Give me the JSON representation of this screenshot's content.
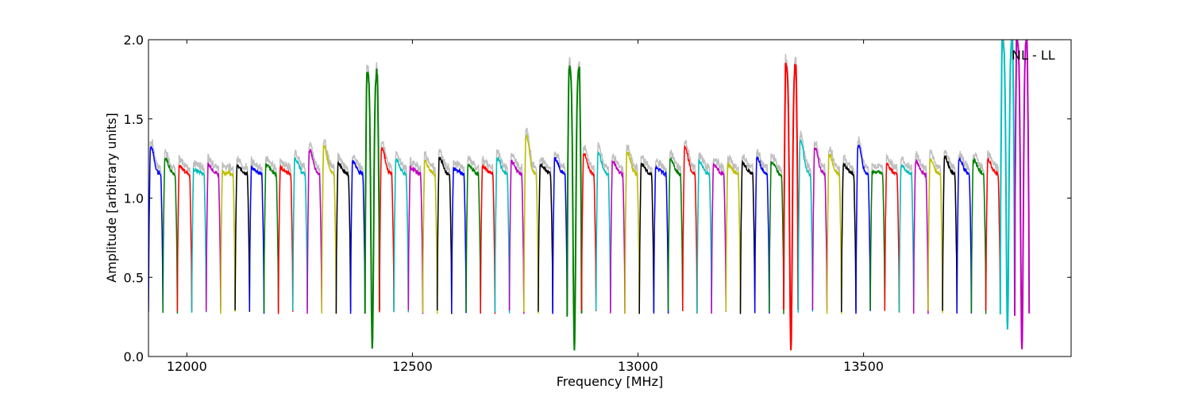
{
  "chart_data": {
    "type": "line",
    "title": "",
    "xlabel": "Frequency [MHz]",
    "ylabel": "Amplitude [arbitrary units]",
    "xlim": [
      11915,
      13960
    ],
    "ylim": [
      0.0,
      2.0
    ],
    "xticks": [
      12000,
      12500,
      13000,
      13500
    ],
    "yticks": [
      0.0,
      0.5,
      1.0,
      1.5,
      2.0
    ],
    "xtick_labels": [
      "12000",
      "12500",
      "13000",
      "13500"
    ],
    "ytick_labels": [
      "0.0",
      "0.5",
      "1.0",
      "1.5",
      "2.0"
    ],
    "grid": false,
    "annotation": "NL - LL",
    "background_trace_color": "#bfbfbf",
    "color_cycle": [
      "#0000ff",
      "#008000",
      "#ff0000",
      "#00bfbf",
      "#bf00bf",
      "#bfbf00",
      "#000000"
    ],
    "subband": {
      "width_mhz": 32,
      "baseline_level": 1.2,
      "edge_minimum": 0.28
    },
    "series": [
      {
        "start": 11915,
        "peak": 1.33
      },
      {
        "start": 11947,
        "peak": 1.26
      },
      {
        "start": 11979,
        "peak": 1.21
      },
      {
        "start": 12011,
        "peak": 1.19
      },
      {
        "start": 12043,
        "peak": 1.22
      },
      {
        "start": 12075,
        "peak": 1.17
      },
      {
        "start": 12107,
        "peak": 1.21
      },
      {
        "start": 12139,
        "peak": 1.2
      },
      {
        "start": 12171,
        "peak": 1.22
      },
      {
        "start": 12203,
        "peak": 1.2
      },
      {
        "start": 12235,
        "peak": 1.26
      },
      {
        "start": 12267,
        "peak": 1.31
      },
      {
        "start": 12299,
        "peak": 1.33
      },
      {
        "start": 12331,
        "peak": 1.23
      },
      {
        "start": 12363,
        "peak": 1.24
      },
      {
        "start": 12395,
        "peak": 1.8,
        "dip": 0.05
      },
      {
        "start": 12427,
        "peak": 1.33
      },
      {
        "start": 12459,
        "peak": 1.25
      },
      {
        "start": 12491,
        "peak": 1.2
      },
      {
        "start": 12523,
        "peak": 1.24
      },
      {
        "start": 12555,
        "peak": 1.26
      },
      {
        "start": 12587,
        "peak": 1.2
      },
      {
        "start": 12619,
        "peak": 1.22
      },
      {
        "start": 12651,
        "peak": 1.21
      },
      {
        "start": 12683,
        "peak": 1.26
      },
      {
        "start": 12715,
        "peak": 1.24
      },
      {
        "start": 12747,
        "peak": 1.4
      },
      {
        "start": 12779,
        "peak": 1.22
      },
      {
        "start": 12811,
        "peak": 1.26
      },
      {
        "start": 12843,
        "peak": 1.82,
        "dip": 0.05
      },
      {
        "start": 12875,
        "peak": 1.29
      },
      {
        "start": 12907,
        "peak": 1.29
      },
      {
        "start": 12939,
        "peak": 1.24
      },
      {
        "start": 12971,
        "peak": 1.3
      },
      {
        "start": 13003,
        "peak": 1.22
      },
      {
        "start": 13035,
        "peak": 1.2
      },
      {
        "start": 13067,
        "peak": 1.26
      },
      {
        "start": 13099,
        "peak": 1.33
      },
      {
        "start": 13131,
        "peak": 1.24
      },
      {
        "start": 13163,
        "peak": 1.22
      },
      {
        "start": 13195,
        "peak": 1.22
      },
      {
        "start": 13227,
        "peak": 1.23
      },
      {
        "start": 13259,
        "peak": 1.26
      },
      {
        "start": 13291,
        "peak": 1.24
      },
      {
        "start": 13323,
        "peak": 1.84,
        "dip": 0.04
      },
      {
        "start": 13355,
        "peak": 1.37
      },
      {
        "start": 13387,
        "peak": 1.33
      },
      {
        "start": 13419,
        "peak": 1.28
      },
      {
        "start": 13451,
        "peak": 1.22
      },
      {
        "start": 13483,
        "peak": 1.34
      },
      {
        "start": 13515,
        "peak": 1.18
      },
      {
        "start": 13547,
        "peak": 1.22
      },
      {
        "start": 13579,
        "peak": 1.21
      },
      {
        "start": 13611,
        "peak": 1.24
      },
      {
        "start": 13643,
        "peak": 1.25
      },
      {
        "start": 13675,
        "peak": 1.27
      },
      {
        "start": 13707,
        "peak": 1.26
      },
      {
        "start": 13739,
        "peak": 1.25
      },
      {
        "start": 13771,
        "peak": 1.25
      },
      {
        "start": 13803,
        "peak": 2.0,
        "dip": 0.18
      },
      {
        "start": 13835,
        "peak": 2.0,
        "dip": 0.04
      }
    ]
  }
}
